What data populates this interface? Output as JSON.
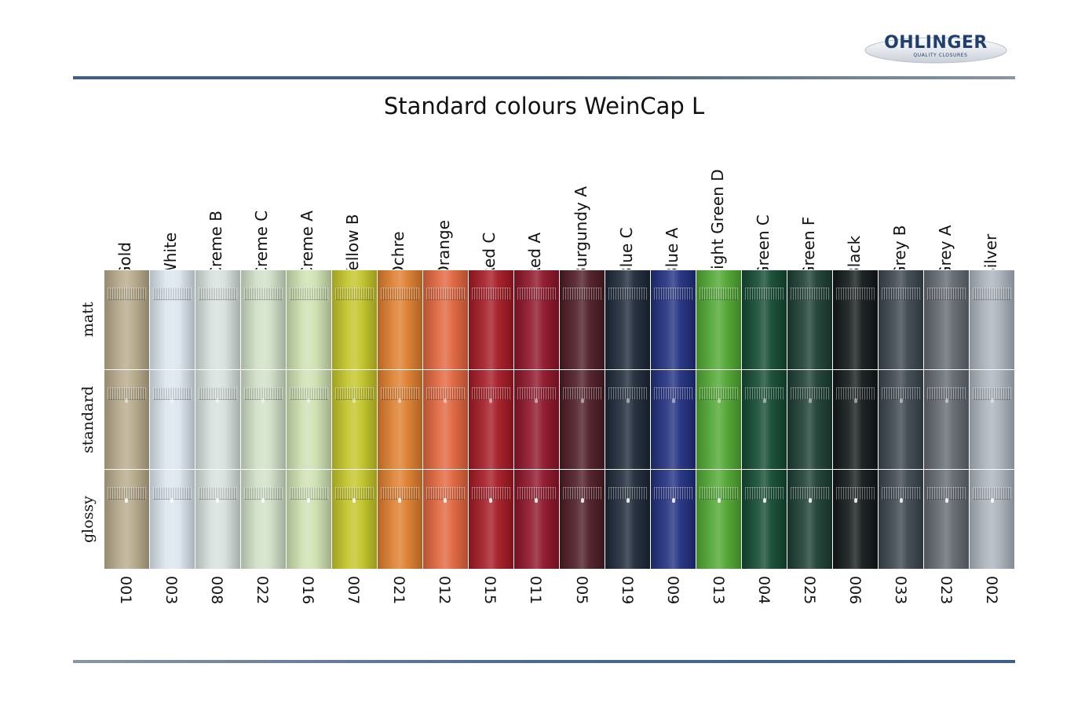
{
  "logo": {
    "name": "OHLINGER",
    "tagline": "QUALITY CLOSURES",
    "colors": {
      "text": "#1f3f6e",
      "oval": "#e6e9ee"
    }
  },
  "title": "Standard colours WeinCap L",
  "rows": [
    {
      "label": "matt",
      "finish": "matt"
    },
    {
      "label": "standard",
      "finish": "standard"
    },
    {
      "label": "glossy",
      "finish": "glossy"
    }
  ],
  "colours": [
    {
      "name": "Gold",
      "code": "001",
      "hex": "#b6a98a"
    },
    {
      "name": "White",
      "code": "003",
      "hex": "#dbe5ee"
    },
    {
      "name": "Creme B",
      "code": "008",
      "hex": "#d6e0dc"
    },
    {
      "name": "Creme C",
      "code": "022",
      "hex": "#cfdfc6"
    },
    {
      "name": "Creme A",
      "code": "016",
      "hex": "#cde0b0"
    },
    {
      "name": "Yellow  B",
      "code": "007",
      "hex": "#c3c426"
    },
    {
      "name": "Ochre",
      "code": "021",
      "hex": "#dd7d2c"
    },
    {
      "name": "Orange",
      "code": "012",
      "hex": "#e0643c"
    },
    {
      "name": "Red C",
      "code": "015",
      "hex": "#a31822"
    },
    {
      "name": "Red A",
      "code": "011",
      "hex": "#8c1327"
    },
    {
      "name": "Burgundy A",
      "code": "005",
      "hex": "#4d1a24"
    },
    {
      "name": "Blue C",
      "code": "019",
      "hex": "#1c2737"
    },
    {
      "name": "Blue A",
      "code": "009",
      "hex": "#1f2e7e"
    },
    {
      "name": "Light Green D",
      "code": "013",
      "hex": "#4fa631"
    },
    {
      "name": "Green C",
      "code": "004",
      "hex": "#114930"
    },
    {
      "name": "Green F",
      "code": "025",
      "hex": "#1b3d31"
    },
    {
      "name": "Black",
      "code": "006",
      "hex": "#111718"
    },
    {
      "name": "Grey B",
      "code": "033",
      "hex": "#3b444d"
    },
    {
      "name": "Grey A",
      "code": "023",
      "hex": "#61676f"
    },
    {
      "name": "Silver",
      "code": "002",
      "hex": "#aab2bb"
    }
  ]
}
